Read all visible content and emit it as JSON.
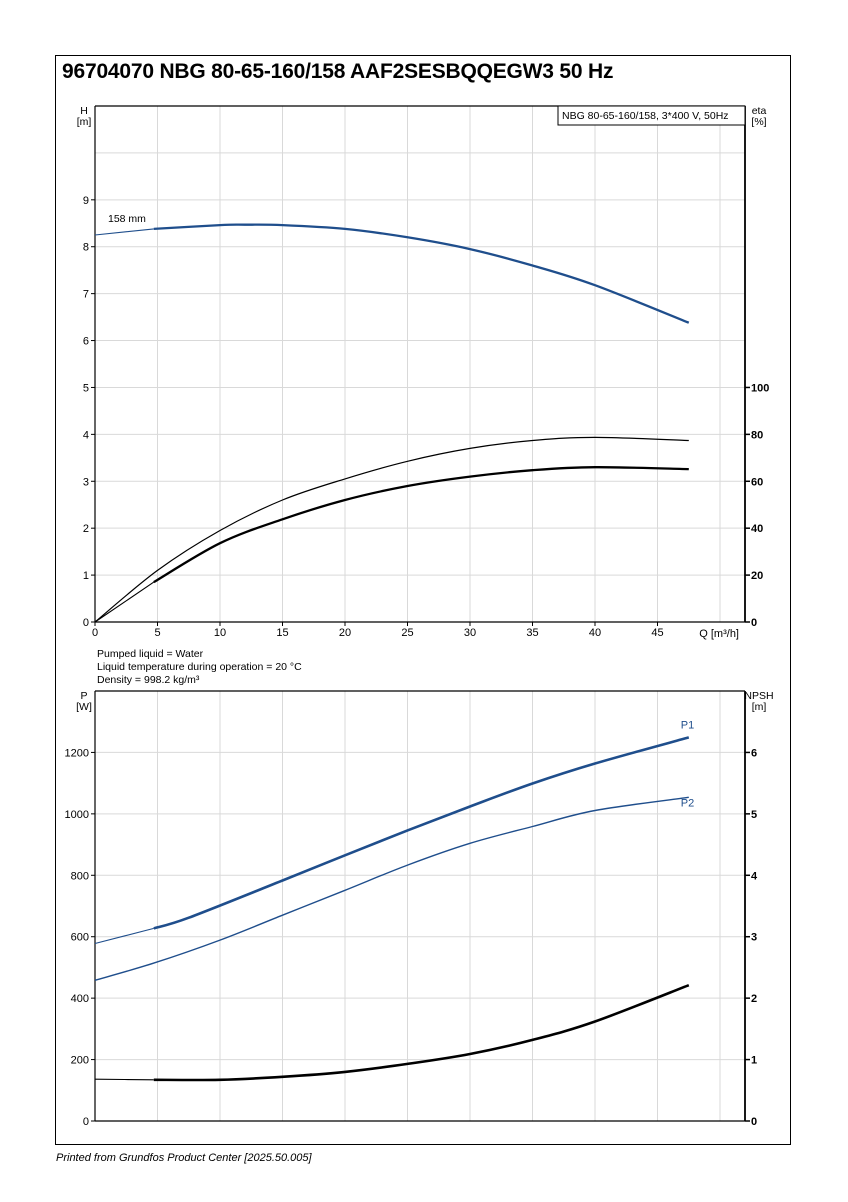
{
  "title": "96704070 NBG 80-65-160/158 AAF2SESBQQEGW3 50 Hz",
  "footer": "Printed from Grundfos Product Center [2025.50.005]",
  "liquid_info": [
    "Pumped liquid = Water",
    "Liquid temperature during operation = 20 °C",
    "Density = 998.2 kg/m³"
  ],
  "colors": {
    "blue": "#1f4e8c",
    "black": "#000000",
    "grid": "#d9d9d9"
  },
  "chart_data": [
    {
      "type": "line",
      "legend": "NBG 80-65-160/158, 3*400 V, 50Hz",
      "xlabel": "Q [m³/h]",
      "ylabel": [
        "H",
        "[m]"
      ],
      "y2label": [
        "eta",
        "[%]"
      ],
      "xlim": [
        0,
        52
      ],
      "ylim": [
        0,
        11
      ],
      "y2lim": [
        0,
        220
      ],
      "xticks": [
        0,
        5,
        10,
        15,
        20,
        25,
        30,
        35,
        40,
        45
      ],
      "yticks": [
        0,
        1,
        2,
        3,
        4,
        5,
        6,
        7,
        8,
        9
      ],
      "y2ticks": [
        0,
        20,
        40,
        60,
        80,
        100
      ],
      "grid": true,
      "series": [
        {
          "label": "158 mm",
          "axis": "y",
          "color": "#1f4e8c",
          "start_thick": 4.7,
          "x": [
            0,
            4.7,
            10,
            12,
            15,
            20,
            25,
            30,
            35,
            40,
            47.5
          ],
          "y": [
            8.25,
            8.38,
            8.46,
            8.47,
            8.46,
            8.38,
            8.2,
            7.95,
            7.6,
            7.18,
            6.38
          ]
        },
        {
          "axis": "y2",
          "color": "#000000",
          "thin": true,
          "x": [
            0,
            5,
            10,
            15,
            20,
            25,
            30,
            35,
            40,
            47.5
          ],
          "y": [
            0,
            22,
            39,
            52,
            61,
            68.5,
            74,
            77.4,
            78.7,
            77.4
          ]
        },
        {
          "axis": "y2",
          "color": "#000000",
          "start_thick": 4.7,
          "x": [
            0,
            4.7,
            10,
            15,
            20,
            25,
            30,
            35,
            40,
            47.5
          ],
          "y": [
            0,
            17,
            33.6,
            43.8,
            52,
            58,
            62,
            64.7,
            66,
            65.2
          ]
        }
      ]
    },
    {
      "type": "line",
      "ylabel": [
        "P",
        "[W]"
      ],
      "y2label": [
        "NPSH",
        "[m]"
      ],
      "xlim": [
        0,
        52
      ],
      "ylim": [
        0,
        1400
      ],
      "y2lim": [
        0,
        7
      ],
      "yticks": [
        0,
        200,
        400,
        600,
        800,
        1000,
        1200
      ],
      "y2ticks": [
        0,
        1,
        2,
        3,
        4,
        5,
        6
      ],
      "grid": true,
      "series": [
        {
          "label": "P1",
          "axis": "y",
          "color": "#1f4e8c",
          "start_thick": 4.7,
          "heavy": true,
          "x": [
            0,
            4.7,
            7.5,
            15,
            20,
            25,
            30,
            35,
            40,
            47.5
          ],
          "y": [
            578,
            627,
            662,
            783,
            865,
            946,
            1024,
            1099,
            1164,
            1249
          ]
        },
        {
          "label": "P2",
          "axis": "y",
          "color": "#1f4e8c",
          "x": [
            0,
            4.7,
            10,
            15,
            20,
            25,
            30,
            35,
            40,
            47.5
          ],
          "y": [
            458,
            514,
            589,
            670,
            751,
            833,
            904,
            959,
            1011,
            1054
          ]
        },
        {
          "axis": "y2",
          "color": "#000000",
          "start_thick": 4.7,
          "heavy": true,
          "x": [
            0,
            4.7,
            10,
            15,
            20,
            25,
            30,
            35,
            40,
            47.5
          ],
          "y": [
            0.68,
            0.67,
            0.67,
            0.72,
            0.8,
            0.93,
            1.09,
            1.32,
            1.62,
            2.21
          ]
        }
      ]
    }
  ]
}
